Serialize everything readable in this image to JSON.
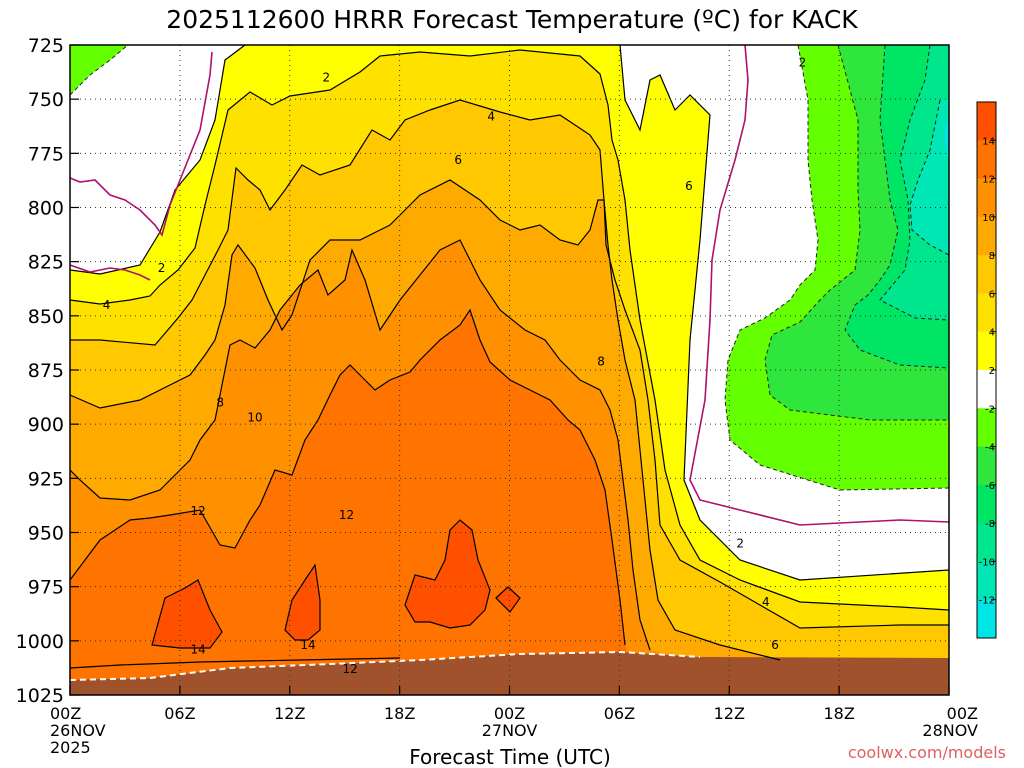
{
  "title": "2025112600 HRRR Forecast Temperature (ºC) for KACK",
  "xlabel": "Forecast Time (UTC)",
  "credit": "coolwx.com/models",
  "colors": {
    "-14": "#29d4f0",
    "-12": "#00e6e6",
    "-10": "#00e6b4",
    "-8": "#00e68c",
    "-6": "#00e664",
    "-4": "#2ee63c",
    "-2": "#64ff00",
    "0": "#ffffff",
    "2": "#ffff00",
    "4": "#ffe100",
    "6": "#ffc800",
    "8": "#ffaa00",
    "10": "#ff9100",
    "12": "#ff7300",
    "14": "#ff5000",
    "ground": "#a0522d",
    "freezing_line": "#b0106e"
  },
  "chart_data": {
    "type": "heatmap",
    "x": [
      0,
      6,
      12,
      18,
      24,
      30,
      36,
      42,
      48
    ],
    "x_tick_labels": [
      [
        "00Z",
        "26NOV",
        "2025"
      ],
      [
        "06Z"
      ],
      [
        "12Z"
      ],
      [
        "18Z"
      ],
      [
        "00Z",
        "27NOV"
      ],
      [
        "06Z"
      ],
      [
        "12Z"
      ],
      [
        "18Z"
      ],
      [
        "00Z",
        "28NOV"
      ]
    ],
    "y_levels": [
      725,
      750,
      775,
      800,
      825,
      850,
      875,
      900,
      925,
      950,
      975,
      1000,
      1025
    ],
    "ylim": [
      1025,
      725
    ],
    "colorbar_ticks": [
      14,
      12,
      10,
      8,
      6,
      4,
      2,
      -2,
      -4,
      -6,
      -8,
      -10,
      -12
    ],
    "colorbar_bins": [
      16,
      14,
      12,
      10,
      8,
      6,
      4,
      2,
      -2,
      -4,
      -6,
      -8,
      -10,
      -12,
      -14
    ],
    "contour_labels": [
      {
        "v": "2",
        "t": 14.0,
        "p": 740
      },
      {
        "v": "4",
        "t": 23.0,
        "p": 758
      },
      {
        "v": "2",
        "t": 40.0,
        "p": 733
      },
      {
        "v": "6",
        "t": 21.2,
        "p": 778
      },
      {
        "v": "6",
        "t": 33.8,
        "p": 790
      },
      {
        "v": "2",
        "t": 5.0,
        "p": 828
      },
      {
        "v": "4",
        "t": 2.0,
        "p": 845
      },
      {
        "v": "8",
        "t": 8.2,
        "p": 890
      },
      {
        "v": "10",
        "t": 10.1,
        "p": 897
      },
      {
        "v": "12",
        "t": 7.0,
        "p": 940
      },
      {
        "v": "12",
        "t": 15.1,
        "p": 942
      },
      {
        "v": "8",
        "t": 29.0,
        "p": 871
      },
      {
        "v": "14",
        "t": 7.0,
        "p": 1004
      },
      {
        "v": "14",
        "t": 13.0,
        "p": 1002
      },
      {
        "v": "12",
        "t": 15.3,
        "p": 1013
      },
      {
        "v": "2",
        "t": 36.6,
        "p": 955
      },
      {
        "v": "4",
        "t": 38.0,
        "p": 982
      },
      {
        "v": "6",
        "t": 38.5,
        "p": 1002
      }
    ]
  }
}
